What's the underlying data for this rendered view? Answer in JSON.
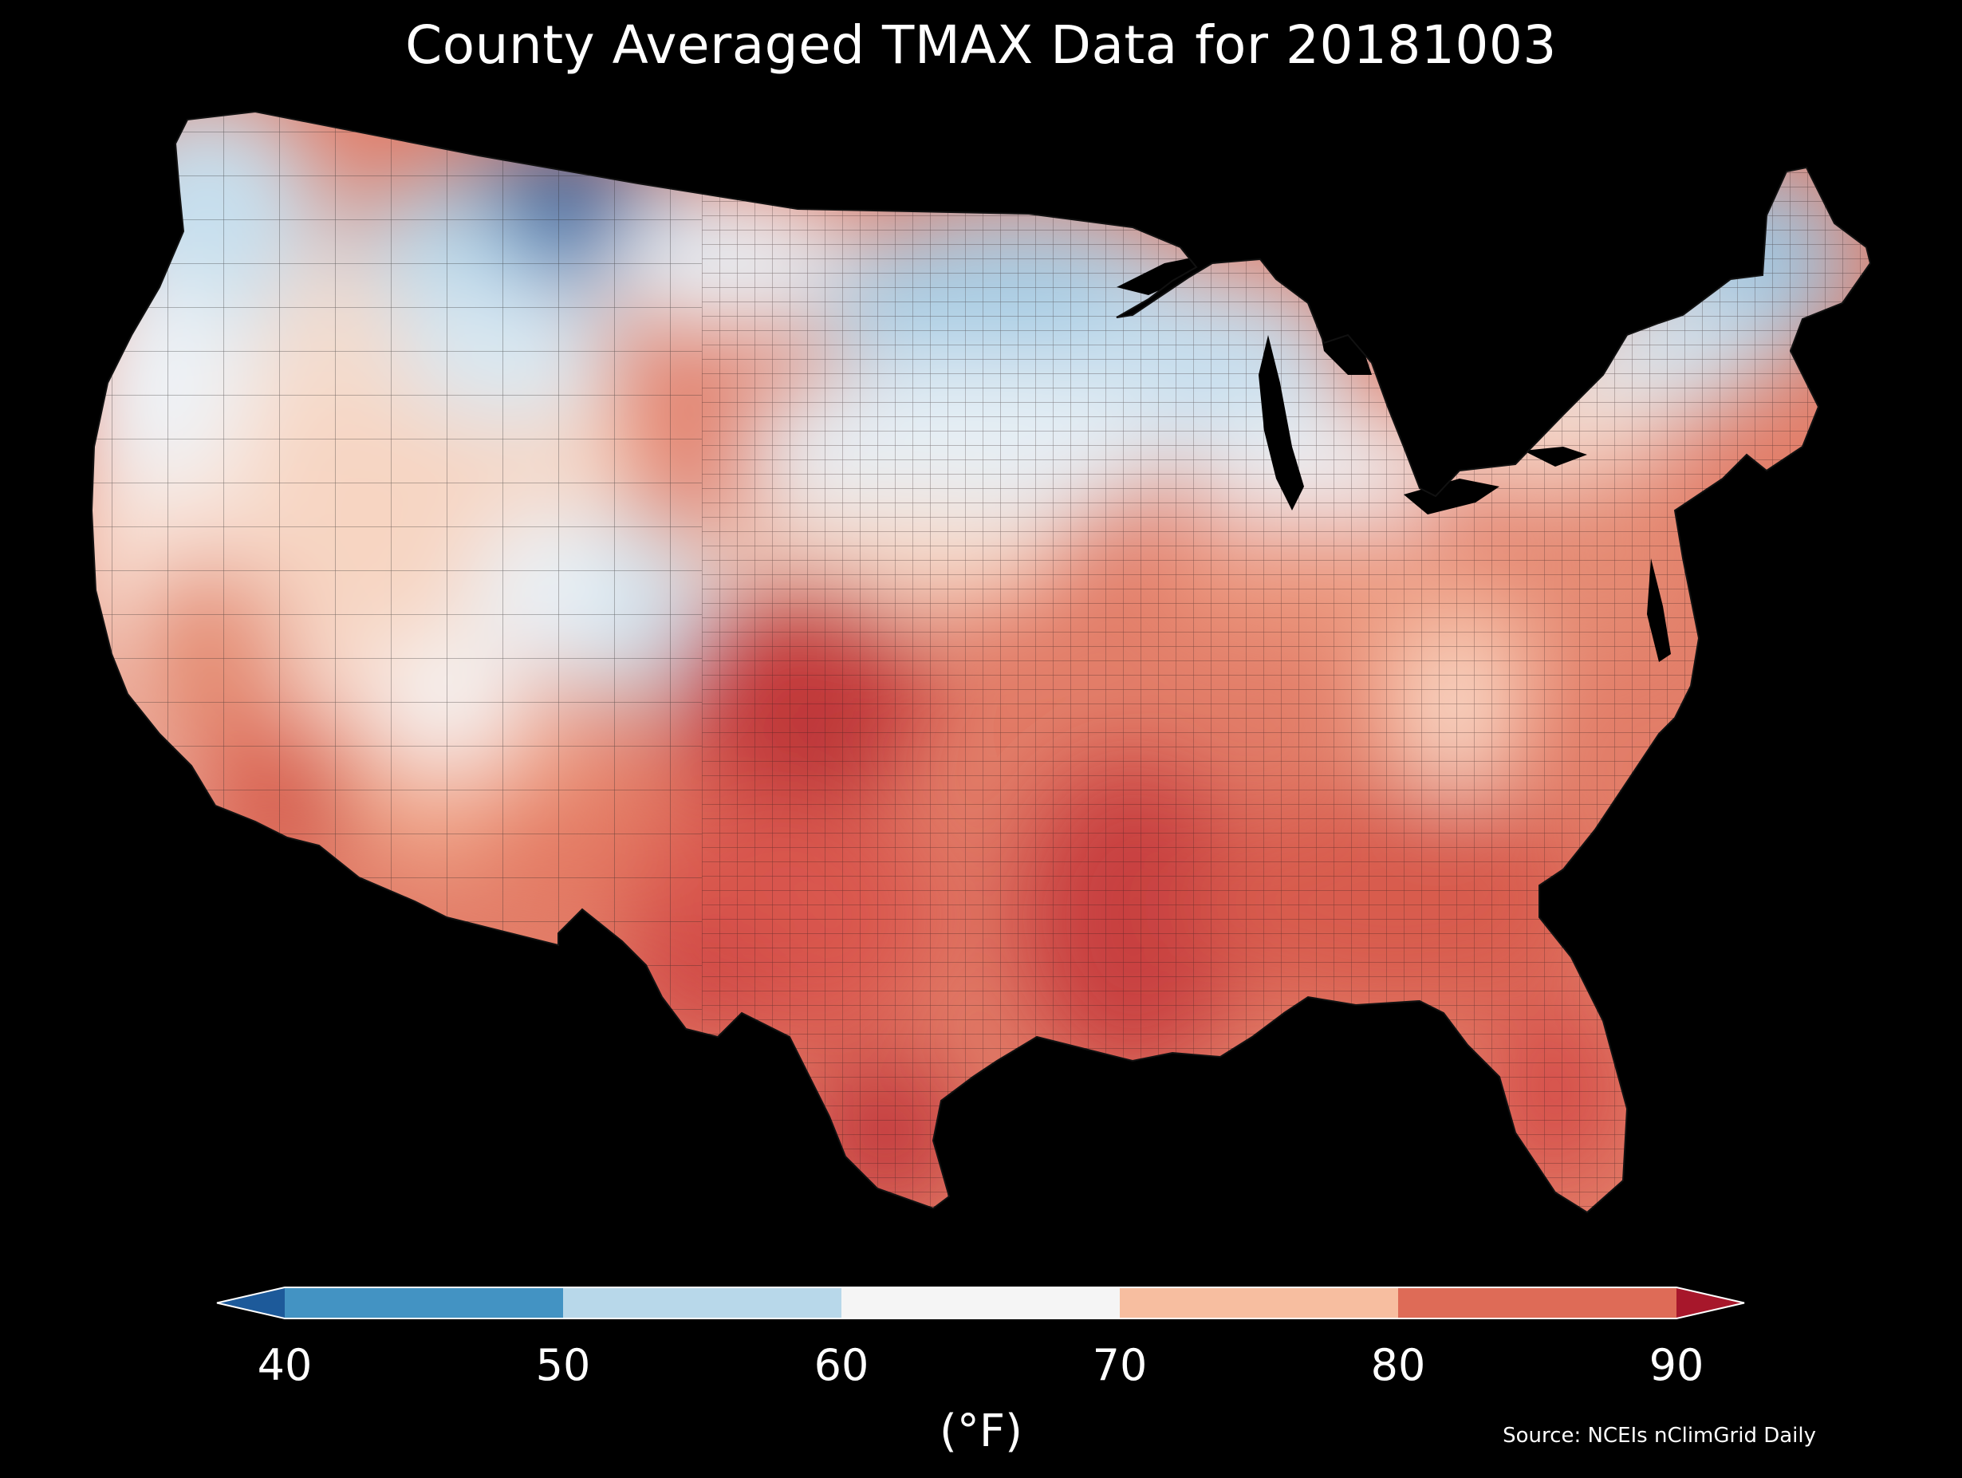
{
  "title": "County Averaged TMAX Data for 20181003",
  "colorbar": {
    "ticks": [
      "40",
      "50",
      "60",
      "70",
      "80",
      "90"
    ],
    "unit": "(°F)",
    "bins": [
      {
        "range": [
          40,
          50
        ],
        "color": "#4393c3"
      },
      {
        "range": [
          50,
          60
        ],
        "color": "#b8d8ea"
      },
      {
        "range": [
          60,
          70
        ],
        "color": "#f5f5f5"
      },
      {
        "range": [
          70,
          80
        ],
        "color": "#f7bea0"
      },
      {
        "range": [
          80,
          90
        ],
        "color": "#de6b57"
      }
    ],
    "under_color": "#1d5a9a",
    "over_color": "#a7172b"
  },
  "source": "Source: NCEIs nClimGrid Daily",
  "map": {
    "region": "contiguous-us-counties",
    "variable": "TMAX",
    "date": "20181003",
    "regional_pattern": {
      "northern-rockies-montana": "#2f6aa9",
      "pacific-northwest": "#b8d8ea",
      "upper-midwest-minnesota-wisconsin": "#a7cce4",
      "northern-new-england": "#7fb2d6",
      "west-coast-inland": "#fad6c2",
      "great-basin": "#f9e2d6",
      "colorado-rockies": "#d3e6f2",
      "central-plains-kansas-oklahoma": "#c63d3e",
      "texas": "#d8514a",
      "southeast": "#d85b4d",
      "lower-mississippi": "#c8413f",
      "florida": "#d44b46",
      "appalachians": "#f9d0b8",
      "ohio-valley": "#ec9a80",
      "mid-atlantic": "#e27d68",
      "southern-arizona": "#c93c3c"
    }
  }
}
